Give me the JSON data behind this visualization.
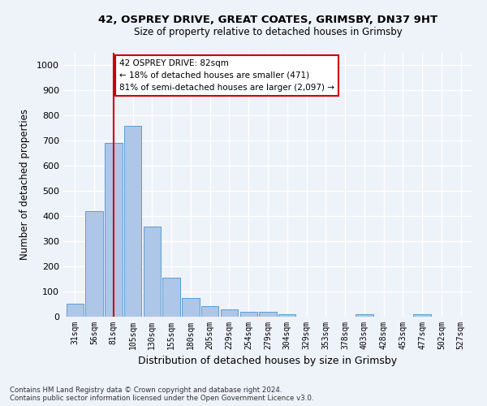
{
  "title_line1": "42, OSPREY DRIVE, GREAT COATES, GRIMSBY, DN37 9HT",
  "title_line2": "Size of property relative to detached houses in Grimsby",
  "xlabel": "Distribution of detached houses by size in Grimsby",
  "ylabel": "Number of detached properties",
  "bar_color": "#aec6e8",
  "bar_edge_color": "#5a9fd4",
  "categories": [
    "31sqm",
    "56sqm",
    "81sqm",
    "105sqm",
    "130sqm",
    "155sqm",
    "180sqm",
    "205sqm",
    "229sqm",
    "254sqm",
    "279sqm",
    "304sqm",
    "329sqm",
    "353sqm",
    "378sqm",
    "403sqm",
    "428sqm",
    "453sqm",
    "477sqm",
    "502sqm",
    "527sqm"
  ],
  "values": [
    52,
    420,
    690,
    760,
    360,
    155,
    75,
    42,
    28,
    18,
    18,
    10,
    0,
    0,
    0,
    10,
    0,
    0,
    10,
    0,
    0
  ],
  "ylim": [
    0,
    1050
  ],
  "yticks": [
    0,
    100,
    200,
    300,
    400,
    500,
    600,
    700,
    800,
    900,
    1000
  ],
  "vline_x": 2,
  "vline_color": "#cc0000",
  "annotation_text": "42 OSPREY DRIVE: 82sqm\n← 18% of detached houses are smaller (471)\n81% of semi-detached houses are larger (2,097) →",
  "annotation_box_color": "#ffffff",
  "annotation_box_edgecolor": "#cc0000",
  "footer_text": "Contains HM Land Registry data © Crown copyright and database right 2024.\nContains public sector information licensed under the Open Government Licence v3.0.",
  "background_color": "#eef2f9",
  "grid_color": "#ffffff"
}
